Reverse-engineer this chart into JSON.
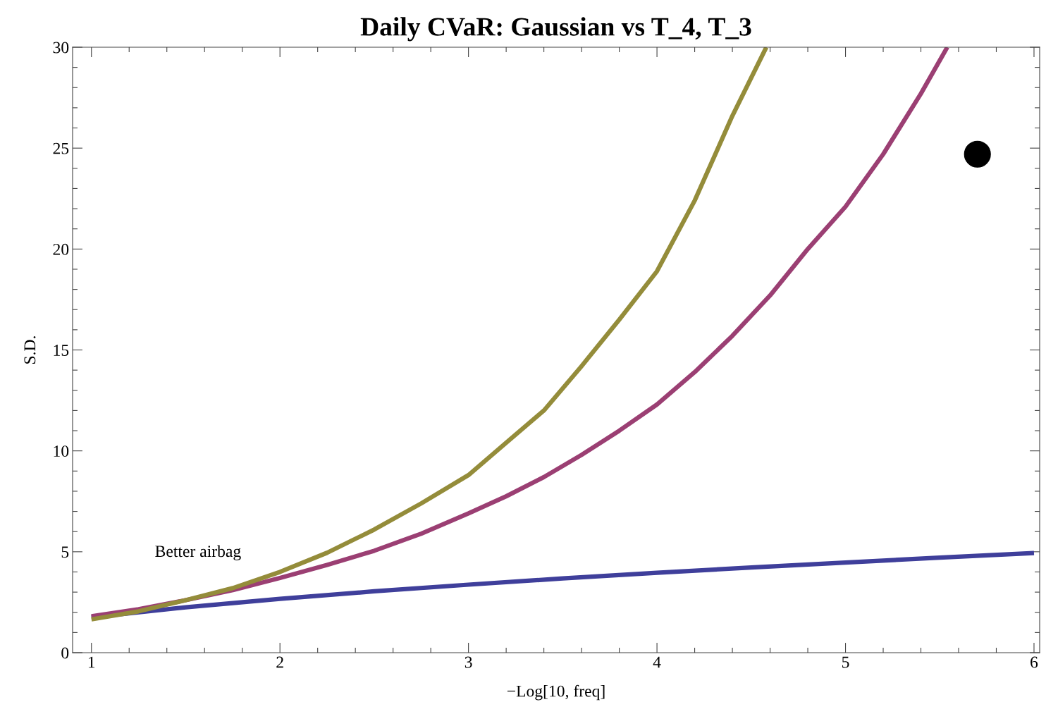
{
  "chart_data": {
    "type": "line",
    "title": "Daily CVaR: Gaussian vs T_4, T_3",
    "xlabel": "−Log[10, freq]",
    "ylabel": "S.D.",
    "xlim": [
      0.9,
      6.03
    ],
    "ylim": [
      0,
      30
    ],
    "xticks": [
      1,
      2,
      3,
      4,
      5,
      6
    ],
    "yticks": [
      0,
      5,
      10,
      15,
      20,
      25,
      30
    ],
    "grid": false,
    "line_style": "solid",
    "marker": "none",
    "annotations": [
      "Better airbag"
    ],
    "series": [
      {
        "color": "#3f3f9b",
        "x": [
          1,
          1.5,
          2,
          2.5,
          3,
          3.5,
          4,
          4.5,
          5,
          5.5,
          6
        ],
        "values": [
          1.75,
          2.25,
          2.67,
          3.04,
          3.37,
          3.68,
          3.96,
          4.22,
          4.47,
          4.71,
          4.94
        ]
      },
      {
        "color": "#9b3f73",
        "x": [
          1,
          1.25,
          1.5,
          1.75,
          2,
          2.25,
          2.5,
          2.75,
          3,
          3.2,
          3.4,
          3.6,
          3.8,
          4,
          4.2,
          4.4,
          4.6,
          4.8,
          5,
          5.2,
          5.4,
          5.54
        ],
        "values": [
          1.8,
          2.15,
          2.6,
          3.1,
          3.7,
          4.35,
          5.05,
          5.9,
          6.9,
          7.75,
          8.7,
          9.8,
          11.0,
          12.3,
          13.9,
          15.7,
          17.7,
          20.0,
          22.1,
          24.7,
          27.7,
          30
        ]
      },
      {
        "color": "#948c3a",
        "x": [
          1,
          1.25,
          1.5,
          1.75,
          2,
          2.25,
          2.5,
          2.75,
          3,
          3.2,
          3.4,
          3.6,
          3.8,
          4,
          4.2,
          4.4,
          4.58
        ],
        "values": [
          1.65,
          2.05,
          2.6,
          3.2,
          4.0,
          4.95,
          6.1,
          7.4,
          8.8,
          10.4,
          12.0,
          14.2,
          16.5,
          18.9,
          22.4,
          26.6,
          30
        ]
      },
      {
        "type": "scatter",
        "color": "#000000",
        "marker": "circle",
        "x": [
          5.7
        ],
        "values": [
          24.7
        ]
      }
    ]
  }
}
